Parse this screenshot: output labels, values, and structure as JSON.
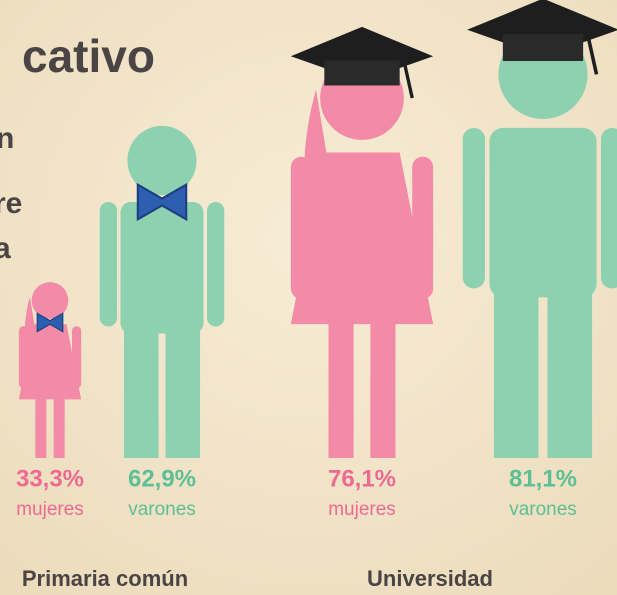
{
  "header": {
    "title": "cativo",
    "lines": [
      "n",
      "re",
      "a"
    ]
  },
  "chart_data": [
    {
      "type": "pictograph",
      "title": "Primaria común",
      "categories": [
        "mujeres",
        "varones"
      ],
      "values": [
        33.3,
        62.9
      ],
      "value_labels": [
        "33,3%",
        "62,9%"
      ],
      "colors": [
        "#f38aa7",
        "#8ed1b1"
      ]
    },
    {
      "type": "pictograph",
      "title": "Universidad",
      "categories": [
        "mujeres",
        "varones"
      ],
      "values": [
        76.1,
        81.1
      ],
      "value_labels": [
        "76,1%",
        "81,1%"
      ],
      "colors": [
        "#f38aa7",
        "#8ed1b1"
      ]
    }
  ]
}
